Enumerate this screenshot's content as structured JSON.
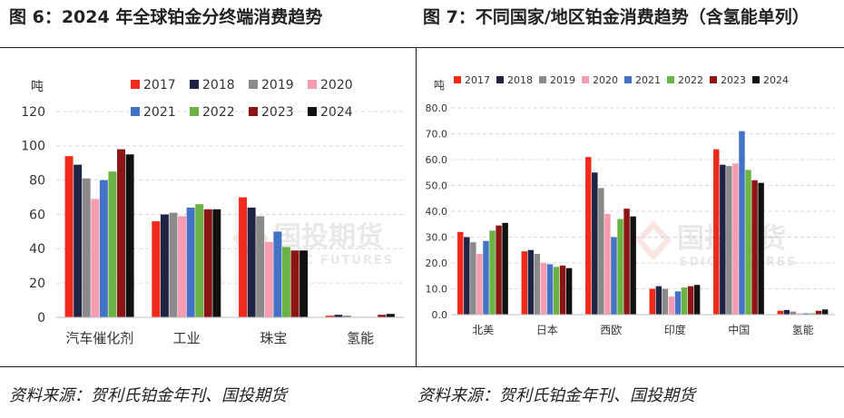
{
  "titles": {
    "left": "图 6：2024 年全球铂金分终端消费趋势",
    "right": "图 7：不同国家/地区铂金消费趋势（含氢能单列）"
  },
  "sources": {
    "left": "资料来源：贺利氏铂金年刊、国投期货",
    "right": "资料来源：贺利氏铂金年刊、国投期货"
  },
  "watermark": {
    "text": "国投期货",
    "subtext": "SDIC FUTURES"
  },
  "colors": {
    "2017": "#ee2a1b",
    "2018": "#1f2344",
    "2019": "#8a8a8a",
    "2020": "#f79cb0",
    "2021": "#4472c4",
    "2022": "#6ab344",
    "2023": "#8c1515",
    "2024": "#111111"
  },
  "chart_data": [
    {
      "type": "bar",
      "title": "2024 年全球铂金分终端消费趋势",
      "ylabel": "吨",
      "ylim": [
        0,
        120
      ],
      "yticks": [
        "0",
        "20",
        "40",
        "60",
        "80",
        "100",
        "120"
      ],
      "categories": [
        "汽车催化剂",
        "工业",
        "珠宝",
        "氢能"
      ],
      "series": [
        {
          "name": "2017",
          "values": [
            94,
            56,
            70,
            1
          ]
        },
        {
          "name": "2018",
          "values": [
            89,
            60,
            64,
            1.5
          ]
        },
        {
          "name": "2019",
          "values": [
            81,
            61,
            59,
            1
          ]
        },
        {
          "name": "2020",
          "values": [
            69,
            59,
            44,
            0.3
          ]
        },
        {
          "name": "2021",
          "values": [
            80,
            64,
            50,
            0.3
          ]
        },
        {
          "name": "2022",
          "values": [
            85,
            66,
            41,
            0.3
          ]
        },
        {
          "name": "2023",
          "values": [
            98,
            63,
            39,
            1.5
          ]
        },
        {
          "name": "2024",
          "values": [
            95,
            63,
            39,
            2
          ]
        }
      ]
    },
    {
      "type": "bar",
      "title": "不同国家/地区铂金消费趋势（含氢能单列）",
      "ylabel": "吨",
      "ylim": [
        0,
        80
      ],
      "yticks": [
        "0.0",
        "10.0",
        "20.0",
        "30.0",
        "40.0",
        "50.0",
        "60.0",
        "70.0",
        "80.0"
      ],
      "categories": [
        "北美",
        "日本",
        "西欧",
        "印度",
        "中国",
        "氢能"
      ],
      "series": [
        {
          "name": "2017",
          "values": [
            32,
            24.5,
            61,
            10,
            64,
            1.5
          ]
        },
        {
          "name": "2018",
          "values": [
            30,
            25,
            55,
            11,
            58,
            1.8
          ]
        },
        {
          "name": "2019",
          "values": [
            28,
            23.5,
            49,
            10,
            57.5,
            1.2
          ]
        },
        {
          "name": "2020",
          "values": [
            23.5,
            20,
            39,
            7,
            58.5,
            0.5
          ]
        },
        {
          "name": "2021",
          "values": [
            28.5,
            19.5,
            30,
            9,
            71,
            0.5
          ]
        },
        {
          "name": "2022",
          "values": [
            32.5,
            18.5,
            37,
            10.5,
            56,
            0.5
          ]
        },
        {
          "name": "2023",
          "values": [
            34.5,
            19,
            41,
            11,
            52,
            1.5
          ]
        },
        {
          "name": "2024",
          "values": [
            35.5,
            18,
            38,
            11.5,
            51,
            2
          ]
        }
      ]
    }
  ]
}
